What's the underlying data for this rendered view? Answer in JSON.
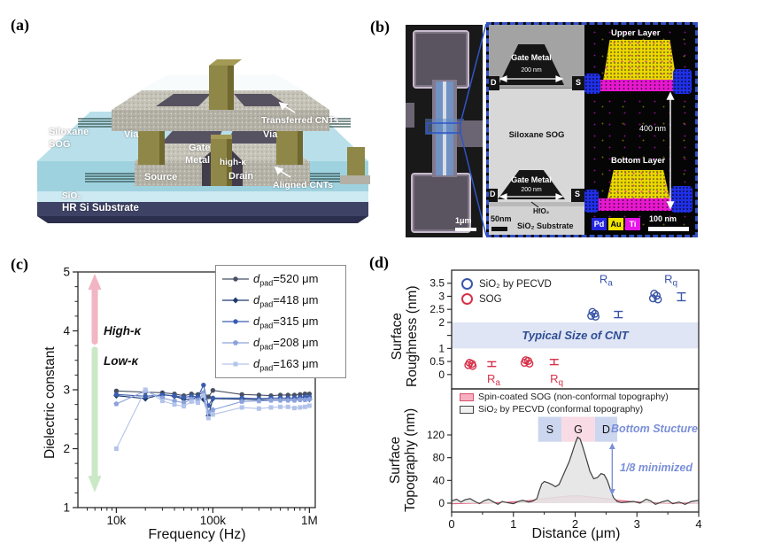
{
  "figure": {
    "panel_labels": {
      "a": "(a)",
      "b": "(b)",
      "c": "(c)",
      "d": "(d)"
    }
  },
  "panel_a": {
    "siloxane_line1": "Siloxane",
    "siloxane_line2": "SOG",
    "via_left": "Via",
    "via_right": "Via",
    "gate_line1": "Gate",
    "gate_line2": "Metal",
    "high_k": "high-κ",
    "source": "Source",
    "drain": "Drain",
    "transferred_cnts": "Transferred CNTs",
    "aligned_cnts": "Aligned CNTs",
    "sio2": "SiO₂",
    "substrate": "HR Si Substrate"
  },
  "panel_b": {
    "sem": {
      "scale_bar": "1μm"
    },
    "tem": {
      "gate_top": "Gate Metal",
      "gate_top_width": "200 nm",
      "d_top": "D",
      "s_top": "S",
      "body": "Siloxane SOG",
      "gate_bottom": "Gate Metal",
      "gate_bottom_width": "200 nm",
      "d_bottom": "D",
      "s_bottom": "S",
      "hfo2": "HfO₂",
      "substrate": "SiO₂ Substrate",
      "scale_bar": "50nm"
    },
    "eds": {
      "upper_layer": "Upper Layer",
      "height": "400 nm",
      "bottom_layer": "Bottom Layer",
      "scale_bar": "100 nm",
      "legend": [
        {
          "label": "Pd",
          "bg": "#2525e0",
          "fg": "#ffffff"
        },
        {
          "label": "Au",
          "bg": "#f0e400",
          "fg": "#000000"
        },
        {
          "label": "Ti",
          "bg": "#e616e6",
          "fg": "#ffffff"
        }
      ]
    }
  },
  "chart_data": [
    {
      "id": "dielectric",
      "type": "line",
      "xlabel": "Frequency (Hz)",
      "ylabel": "Dielectric constant",
      "x_scale": "log",
      "xlim": [
        4000,
        1150000
      ],
      "ylim": [
        1,
        5
      ],
      "x_ticks": [
        {
          "v": 10000,
          "label": "10k"
        },
        {
          "v": 100000,
          "label": "100k"
        },
        {
          "v": 1000000,
          "label": "1M"
        }
      ],
      "y_ticks": [
        1,
        2,
        3,
        4,
        5
      ],
      "x": [
        10000,
        20000,
        30000,
        40000,
        50000,
        60000,
        70000,
        80000,
        90000,
        100000,
        200000,
        300000,
        400000,
        500000,
        600000,
        700000,
        800000,
        900000,
        1000000
      ],
      "series": [
        {
          "label_d": "d",
          "label_sub": "pad",
          "label_val": "=520 μm",
          "marker": "circle",
          "color": "#474f63",
          "values": [
            2.98,
            2.96,
            2.95,
            2.93,
            2.9,
            2.93,
            2.92,
            2.95,
            2.88,
            2.99,
            2.92,
            2.91,
            2.9,
            2.91,
            2.91,
            2.91,
            2.92,
            2.93,
            2.93
          ]
        },
        {
          "label_d": "d",
          "label_sub": "pad",
          "label_val": "=418 μm",
          "marker": "diamond",
          "color": "#1e3a6e",
          "values": [
            2.9,
            2.85,
            2.92,
            2.89,
            2.84,
            2.84,
            2.88,
            2.84,
            2.56,
            2.85,
            2.84,
            2.83,
            2.83,
            2.83,
            2.83,
            2.83,
            2.84,
            2.84,
            2.84
          ]
        },
        {
          "label_d": "d",
          "label_sub": "pad",
          "label_val": "=315 μm",
          "marker": "circle",
          "color": "#3a5db0",
          "values": [
            2.92,
            2.89,
            2.91,
            2.9,
            2.87,
            2.89,
            2.88,
            3.08,
            2.73,
            2.86,
            2.86,
            2.85,
            2.86,
            2.86,
            2.86,
            2.86,
            2.87,
            2.88,
            2.88
          ]
        },
        {
          "label_d": "d",
          "label_sub": "pad",
          "label_val": "=208 μm",
          "marker": "pentagon",
          "color": "#8ba2dc",
          "values": [
            2.76,
            2.98,
            2.86,
            2.81,
            2.78,
            2.84,
            2.82,
            2.95,
            2.62,
            2.66,
            2.8,
            2.81,
            2.82,
            2.82,
            2.82,
            2.82,
            2.83,
            2.83,
            2.84
          ]
        },
        {
          "label_d": "d",
          "label_sub": "pad",
          "label_val": "=163 μm",
          "marker": "square",
          "color": "#b3c3ea",
          "values": [
            2.0,
            3.0,
            2.81,
            2.75,
            2.72,
            2.8,
            2.78,
            2.9,
            2.52,
            2.58,
            2.7,
            2.68,
            2.7,
            2.71,
            2.71,
            2.69,
            2.7,
            2.71,
            2.73
          ]
        }
      ],
      "annotations": {
        "high": "High-κ",
        "low": "Low-κ"
      },
      "arrows": {
        "up_color": "#f2b5c3",
        "down_color": "#cbe8c6"
      }
    },
    {
      "id": "roughness",
      "type": "scatter",
      "ylabel_line1": "Surface",
      "ylabel_line2": "Roughness (nm)",
      "xlim": [
        0,
        4
      ],
      "ylim": [
        -0.55,
        4.0
      ],
      "y_ticks": [
        {
          "v": 0,
          "label": "0"
        },
        {
          "v": 0.5,
          "label": "0.5"
        },
        {
          "v": 1,
          "label": "1"
        },
        {
          "v": 1.5,
          "label": ""
        },
        {
          "v": 2,
          "label": "2"
        },
        {
          "v": 2.5,
          "label": "2.5"
        },
        {
          "v": 3,
          "label": "3"
        },
        {
          "v": 3.5,
          "label": "3.5"
        }
      ],
      "legend": [
        {
          "label": "SiO₂ by PECVD",
          "color": "#3a55a8"
        },
        {
          "label": "SOG",
          "color": "#d8314a"
        }
      ],
      "band": {
        "y0": 1,
        "y1": 2,
        "color": "#dfe5f4",
        "label": "Typical Size of CNT",
        "label_color": "#2f4d96"
      },
      "groups": [
        {
          "name": "sog-ra",
          "color": "#d8314a",
          "points": [
            [
              0.27,
              0.36
            ],
            [
              0.33,
              0.41
            ],
            [
              0.29,
              0.45
            ],
            [
              0.34,
              0.33
            ]
          ],
          "err": {
            "x": 0.65,
            "mean": 0.4,
            "e": 0.09
          },
          "tag_main": "R",
          "tag_sub": "a",
          "tag_x": 0.68,
          "tag_y": -0.32
        },
        {
          "name": "sog-rq",
          "color": "#d8314a",
          "points": [
            [
              1.18,
              0.45
            ],
            [
              1.24,
              0.52
            ],
            [
              1.2,
              0.55
            ],
            [
              1.26,
              0.42
            ]
          ],
          "err": {
            "x": 1.66,
            "mean": 0.48,
            "e": 0.1
          },
          "tag_main": "R",
          "tag_sub": "q",
          "tag_x": 1.7,
          "tag_y": -0.32
        },
        {
          "name": "pecvd-ra",
          "color": "#3a55a8",
          "points": [
            [
              2.26,
              2.25
            ],
            [
              2.32,
              2.33
            ],
            [
              2.28,
              2.4
            ],
            [
              2.33,
              2.22
            ]
          ],
          "err": {
            "x": 2.7,
            "mean": 2.3,
            "e": 0.12
          },
          "tag_main": "R",
          "tag_sub": "a",
          "tag_x": 2.5,
          "tag_y": 3.5
        },
        {
          "name": "pecvd-rq",
          "color": "#3a55a8",
          "points": [
            [
              3.26,
              2.92
            ],
            [
              3.32,
              3.02
            ],
            [
              3.28,
              3.1
            ],
            [
              3.34,
              2.88
            ]
          ],
          "err": {
            "x": 3.72,
            "mean": 2.98,
            "e": 0.15
          },
          "tag_main": "R",
          "tag_sub": "q",
          "tag_x": 3.55,
          "tag_y": 3.5
        }
      ]
    },
    {
      "id": "topography",
      "type": "area",
      "ylabel_line1": "Surface",
      "ylabel_line2": "Topography (nm)",
      "xlabel": "Distance (μm)",
      "xlim": [
        0,
        4
      ],
      "ylim": [
        -16,
        202
      ],
      "x_ticks": [
        0,
        1,
        2,
        3,
        4
      ],
      "y_ticks": [
        0,
        40,
        80,
        120
      ],
      "legend": [
        {
          "label": "Spin-coated SOG (non-conformal topography)",
          "fill": "#f7b0c0",
          "stroke": "#d8506e"
        },
        {
          "label": "SiO₂ by PECVD (conformal topography)",
          "fill": "#f0f0f0",
          "stroke": "#444444"
        }
      ],
      "boxes": [
        {
          "label": "S",
          "x0": 1.4,
          "x1": 1.78,
          "color": "#ccd6ee"
        },
        {
          "label": "G",
          "x0": 1.78,
          "x1": 2.32,
          "color": "#f8dbe4"
        },
        {
          "label": "D",
          "x0": 2.32,
          "x1": 2.68,
          "color": "#ccd6ee"
        }
      ],
      "box_y": [
        108,
        152
      ],
      "annotations": {
        "bottom_structure": "Bottom Stucture",
        "minimized": "1/8 minimized",
        "color": "#7a8fd8"
      },
      "arrow": {
        "x": 2.6,
        "y0": 14,
        "y1": 106
      },
      "series": [
        {
          "name": "pecvd",
          "stroke": "#3f3f3f",
          "fill": "#e4e4e4",
          "points": [
            [
              0,
              4
            ],
            [
              0.08,
              7
            ],
            [
              0.15,
              2
            ],
            [
              0.22,
              6
            ],
            [
              0.3,
              8
            ],
            [
              0.38,
              3
            ],
            [
              0.45,
              -1
            ],
            [
              0.52,
              4
            ],
            [
              0.6,
              7
            ],
            [
              0.68,
              2
            ],
            [
              0.75,
              -2
            ],
            [
              0.82,
              3
            ],
            [
              0.9,
              1
            ],
            [
              1.0,
              -1
            ],
            [
              1.08,
              3
            ],
            [
              1.15,
              5
            ],
            [
              1.25,
              2
            ],
            [
              1.32,
              4
            ],
            [
              1.38,
              8
            ],
            [
              1.42,
              22
            ],
            [
              1.46,
              34
            ],
            [
              1.5,
              38
            ],
            [
              1.56,
              36
            ],
            [
              1.62,
              33
            ],
            [
              1.68,
              29
            ],
            [
              1.74,
              33
            ],
            [
              1.8,
              48
            ],
            [
              1.85,
              60
            ],
            [
              1.9,
              72
            ],
            [
              1.95,
              88
            ],
            [
              2.0,
              105
            ],
            [
              2.04,
              116
            ],
            [
              2.08,
              113
            ],
            [
              2.12,
              100
            ],
            [
              2.18,
              78
            ],
            [
              2.24,
              56
            ],
            [
              2.3,
              43
            ],
            [
              2.36,
              45
            ],
            [
              2.42,
              52
            ],
            [
              2.47,
              50
            ],
            [
              2.52,
              40
            ],
            [
              2.57,
              24
            ],
            [
              2.62,
              10
            ],
            [
              2.68,
              3
            ],
            [
              2.75,
              1
            ],
            [
              2.85,
              2
            ],
            [
              2.95,
              3
            ],
            [
              3.05,
              0
            ],
            [
              3.15,
              7
            ],
            [
              3.22,
              4
            ],
            [
              3.3,
              -2
            ],
            [
              3.4,
              2
            ],
            [
              3.5,
              5
            ],
            [
              3.58,
              -1
            ],
            [
              3.68,
              2
            ],
            [
              3.78,
              -2
            ],
            [
              3.88,
              3
            ],
            [
              4,
              5
            ]
          ]
        },
        {
          "name": "sog",
          "stroke": "#e2647e",
          "fill": "#f7b3c2",
          "points": [
            [
              0,
              -1
            ],
            [
              0.3,
              0
            ],
            [
              0.6,
              0.5
            ],
            [
              0.9,
              1.5
            ],
            [
              1.1,
              3
            ],
            [
              1.3,
              5
            ],
            [
              1.5,
              8
            ],
            [
              1.7,
              10.5
            ],
            [
              1.9,
              12.5
            ],
            [
              2.0,
              13
            ],
            [
              2.1,
              12.5
            ],
            [
              2.3,
              10.5
            ],
            [
              2.5,
              8
            ],
            [
              2.7,
              5
            ],
            [
              2.9,
              3
            ],
            [
              3.1,
              1.5
            ],
            [
              3.3,
              0.5
            ],
            [
              3.6,
              0
            ],
            [
              4,
              0.5
            ]
          ]
        }
      ]
    }
  ]
}
